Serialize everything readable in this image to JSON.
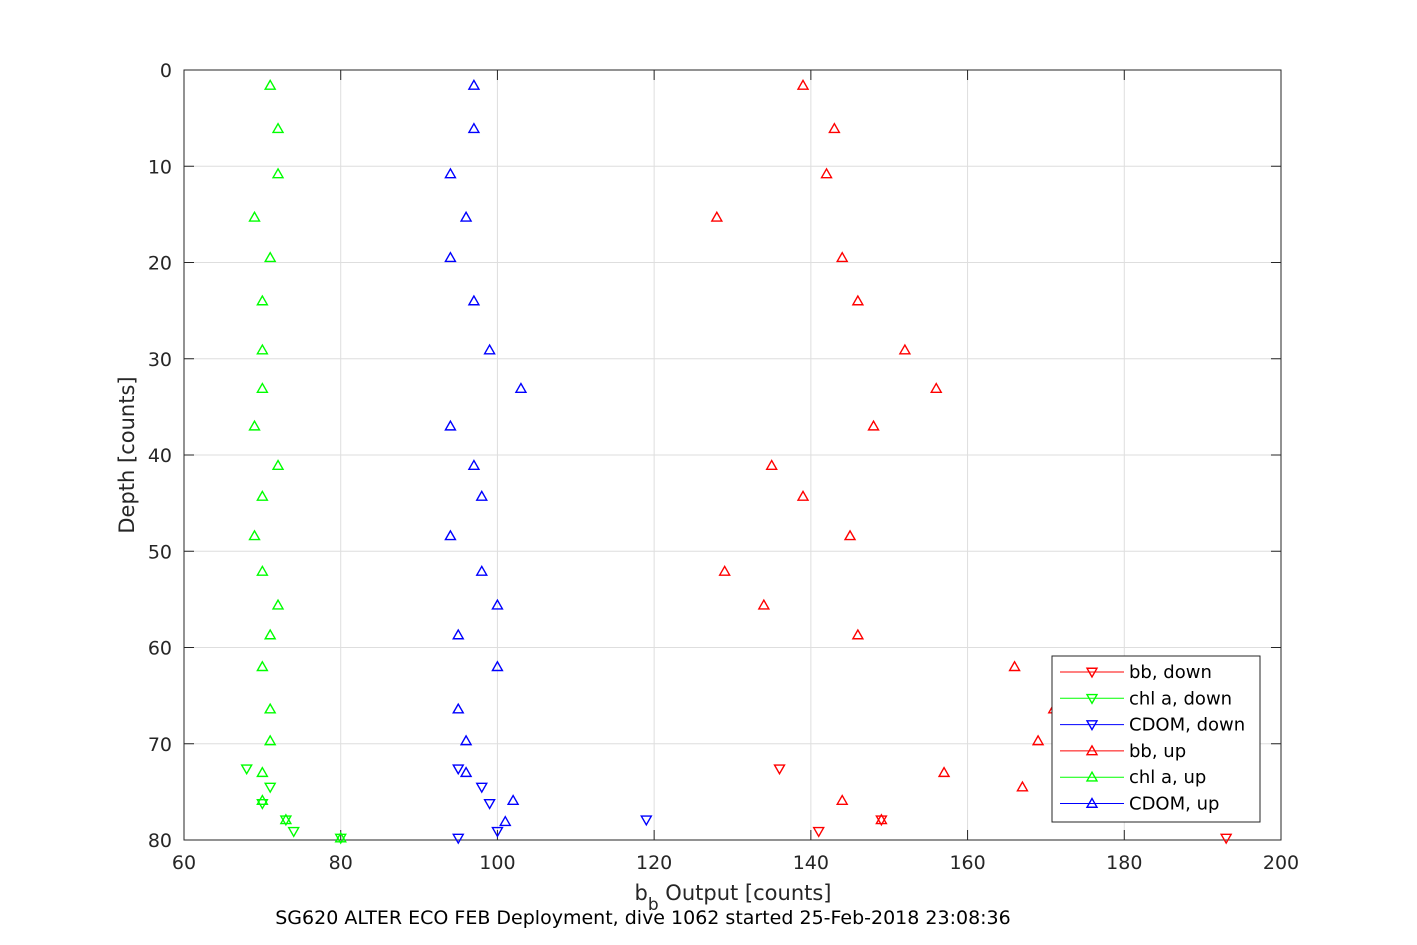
{
  "chart_data": {
    "type": "scatter",
    "xlabel_main": "b",
    "xlabel_sub": "b",
    "xlabel_rest": " Output [counts]",
    "ylabel": "Depth [counts]",
    "caption": "SG620 ALTER ECO FEB Deployment, dive 1062 started 25-Feb-2018 23:08:36",
    "xlim": [
      60,
      200
    ],
    "ylim": [
      0,
      80
    ],
    "y_reversed": true,
    "grid": true,
    "legend_position": "bottom-right",
    "xticks": [
      60,
      80,
      100,
      120,
      140,
      160,
      180,
      200
    ],
    "yticks": [
      0,
      10,
      20,
      30,
      40,
      50,
      60,
      70,
      80
    ],
    "series": [
      {
        "name": "bb, down",
        "color": "#ff0000",
        "marker": "triangle-down",
        "points": [
          [
            136,
            72.6
          ],
          [
            149,
            77.9
          ],
          [
            141,
            79.1
          ],
          [
            193,
            79.8
          ]
        ]
      },
      {
        "name": "chl a, down",
        "color": "#00ff00",
        "marker": "triangle-down",
        "points": [
          [
            68,
            72.6
          ],
          [
            71,
            74.5
          ],
          [
            70,
            76.2
          ],
          [
            73,
            77.9
          ],
          [
            74,
            79.1
          ],
          [
            80,
            79.8
          ]
        ]
      },
      {
        "name": "CDOM, down",
        "color": "#0000ff",
        "marker": "triangle-down",
        "points": [
          [
            95,
            72.6
          ],
          [
            98,
            74.5
          ],
          [
            99,
            76.2
          ],
          [
            119,
            77.9
          ],
          [
            100,
            79.1
          ],
          [
            95,
            79.8
          ]
        ]
      },
      {
        "name": "bb, up",
        "color": "#ff0000",
        "marker": "triangle-up",
        "points": [
          [
            139,
            1.6
          ],
          [
            143,
            6.1
          ],
          [
            142,
            10.8
          ],
          [
            128,
            15.3
          ],
          [
            144,
            19.5
          ],
          [
            146,
            24.0
          ],
          [
            152,
            29.1
          ],
          [
            156,
            33.1
          ],
          [
            148,
            37.0
          ],
          [
            135,
            41.1
          ],
          [
            139,
            44.3
          ],
          [
            145,
            48.4
          ],
          [
            129,
            52.1
          ],
          [
            134,
            55.6
          ],
          [
            146,
            58.7
          ],
          [
            166,
            62.0
          ],
          [
            171,
            66.4
          ],
          [
            169,
            69.7
          ],
          [
            157,
            73.0
          ],
          [
            167,
            74.5
          ],
          [
            144,
            75.9
          ],
          [
            149,
            77.9
          ]
        ]
      },
      {
        "name": "chl a, up",
        "color": "#00ff00",
        "marker": "triangle-up",
        "points": [
          [
            71,
            1.6
          ],
          [
            72,
            6.1
          ],
          [
            72,
            10.8
          ],
          [
            69,
            15.3
          ],
          [
            71,
            19.5
          ],
          [
            70,
            24.0
          ],
          [
            70,
            29.1
          ],
          [
            70,
            33.1
          ],
          [
            69,
            37.0
          ],
          [
            72,
            41.1
          ],
          [
            70,
            44.3
          ],
          [
            69,
            48.4
          ],
          [
            70,
            52.1
          ],
          [
            72,
            55.6
          ],
          [
            71,
            58.7
          ],
          [
            70,
            62.0
          ],
          [
            71,
            66.4
          ],
          [
            71,
            69.7
          ],
          [
            70,
            73.0
          ],
          [
            70,
            75.9
          ],
          [
            73,
            77.9
          ],
          [
            80,
            79.8
          ]
        ]
      },
      {
        "name": "CDOM, up",
        "color": "#0000ff",
        "marker": "triangle-up",
        "points": [
          [
            97,
            1.6
          ],
          [
            97,
            6.1
          ],
          [
            94,
            10.8
          ],
          [
            96,
            15.3
          ],
          [
            94,
            19.5
          ],
          [
            97,
            24.0
          ],
          [
            99,
            29.1
          ],
          [
            103,
            33.1
          ],
          [
            94,
            37.0
          ],
          [
            97,
            41.1
          ],
          [
            98,
            44.3
          ],
          [
            94,
            48.4
          ],
          [
            98,
            52.1
          ],
          [
            100,
            55.6
          ],
          [
            95,
            58.7
          ],
          [
            100,
            62.0
          ],
          [
            95,
            66.4
          ],
          [
            96,
            69.7
          ],
          [
            96,
            73.0
          ],
          [
            102,
            75.9
          ],
          [
            101,
            78.1
          ]
        ]
      }
    ]
  }
}
